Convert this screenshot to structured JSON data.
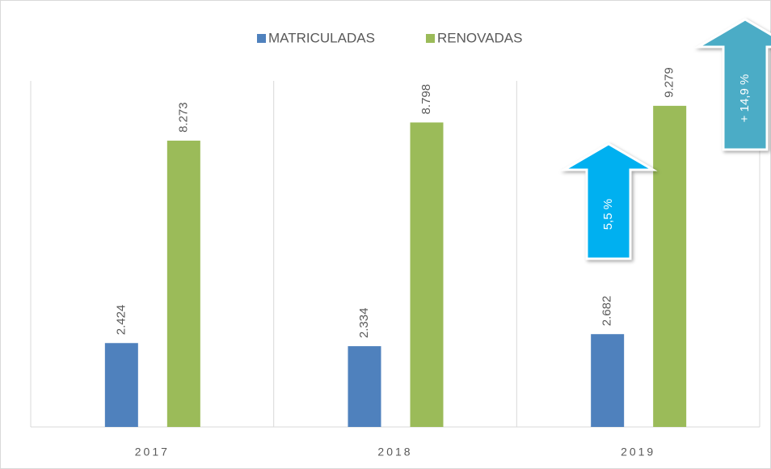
{
  "chart_data": {
    "type": "bar",
    "categories": [
      "2017",
      "2018",
      "2019"
    ],
    "series": [
      {
        "name": "MATRICULADAS",
        "color": "#4f81bd",
        "values": [
          2424,
          2334,
          2682
        ],
        "value_labels": [
          "2.424",
          "2.334",
          "2.682"
        ]
      },
      {
        "name": "RENOVADAS",
        "color": "#9bbb59",
        "values": [
          8273,
          8798,
          9279
        ],
        "value_labels": [
          "8.273",
          "8.798",
          "9.279"
        ]
      }
    ],
    "ylim": [
      0,
      10000
    ],
    "legend": "top",
    "annotations": [
      "5,5 %",
      "+ 14,9 %"
    ]
  }
}
